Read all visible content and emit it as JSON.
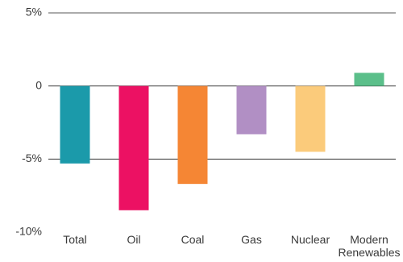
{
  "chart_data": {
    "type": "bar",
    "categories": [
      "Total",
      "Oil",
      "Coal",
      "Gas",
      "Nuclear",
      "Modern Renewables"
    ],
    "values": [
      -5.3,
      -8.5,
      -6.7,
      -3.3,
      -4.5,
      0.9
    ],
    "colors": [
      "#1b9aaa",
      "#ec1163",
      "#f58634",
      "#b18fc4",
      "#fbcb7b",
      "#5bbf8a"
    ],
    "title": "",
    "xlabel": "",
    "ylabel": "",
    "ylim": [
      -10,
      5
    ],
    "yticks": [
      5,
      0,
      -5,
      -10
    ],
    "ytick_labels": [
      "5%",
      "0",
      "-5%",
      "-10%"
    ],
    "grid": true,
    "legend": "none"
  }
}
